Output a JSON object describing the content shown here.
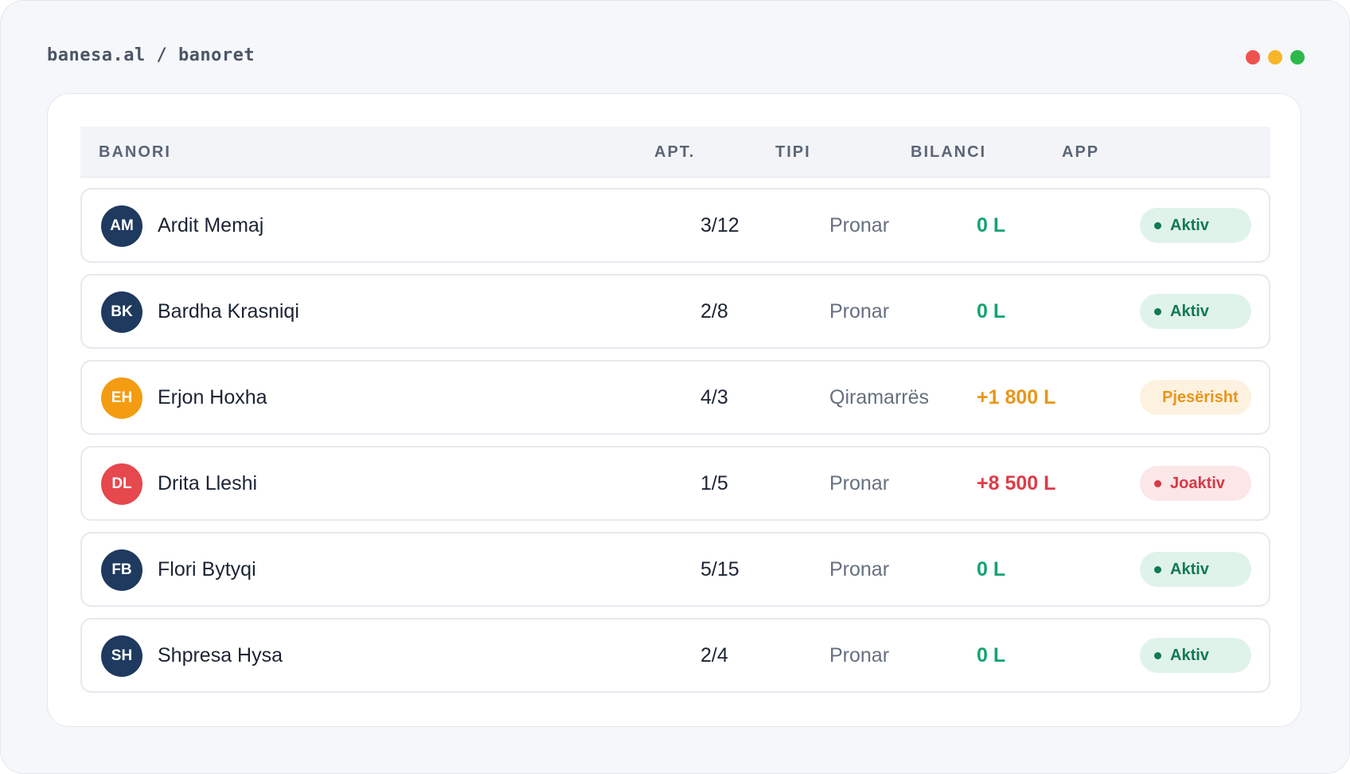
{
  "breadcrumb": "banesa.al / banoret",
  "window_dots": [
    "#ef5350",
    "#f6b52a",
    "#2fb84a"
  ],
  "table": {
    "headers": {
      "resident": "BANORI",
      "apartment": "APT.",
      "type": "TIPI",
      "balance": "BILANCI",
      "app": "APP"
    },
    "rows": [
      {
        "initials": "AM",
        "avatar_color": "#1f3a5f",
        "name": "Ardit Memaj",
        "apartment": "3/12",
        "type": "Pronar",
        "balance": "0 L",
        "balance_color": "#15a36f",
        "app_status": "Aktiv",
        "status_text_color": "#137a52",
        "status_bg": "#e0f3ea",
        "status_dot": true
      },
      {
        "initials": "BK",
        "avatar_color": "#1f3a5f",
        "name": "Bardha Krasniqi",
        "apartment": "2/8",
        "type": "Pronar",
        "balance": "0 L",
        "balance_color": "#15a36f",
        "app_status": "Aktiv",
        "status_text_color": "#137a52",
        "status_bg": "#e0f3ea",
        "status_dot": true
      },
      {
        "initials": "EH",
        "avatar_color": "#f39c12",
        "name": "Erjon Hoxha",
        "apartment": "4/3",
        "type": "Qiramarrës",
        "balance": "+1 800 L",
        "balance_color": "#e8961a",
        "app_status": "Pjesërisht",
        "status_text_color": "#e8961a",
        "status_bg": "#fdf1e0",
        "status_dot": false
      },
      {
        "initials": "DL",
        "avatar_color": "#e5484d",
        "name": "Drita Lleshi",
        "apartment": "1/5",
        "type": "Pronar",
        "balance": "+8 500 L",
        "balance_color": "#dc3c48",
        "app_status": "Joaktiv",
        "status_text_color": "#d63a46",
        "status_bg": "#fbe6e8",
        "status_dot": true
      },
      {
        "initials": "FB",
        "avatar_color": "#1f3a5f",
        "name": "Flori Bytyqi",
        "apartment": "5/15",
        "type": "Pronar",
        "balance": "0 L",
        "balance_color": "#15a36f",
        "app_status": "Aktiv",
        "status_text_color": "#137a52",
        "status_bg": "#e0f3ea",
        "status_dot": true
      },
      {
        "initials": "SH",
        "avatar_color": "#1f3a5f",
        "name": "Shpresa Hysa",
        "apartment": "2/4",
        "type": "Pronar",
        "balance": "0 L",
        "balance_color": "#15a36f",
        "app_status": "Aktiv",
        "status_text_color": "#137a52",
        "status_bg": "#e0f3ea",
        "status_dot": true
      }
    ]
  }
}
